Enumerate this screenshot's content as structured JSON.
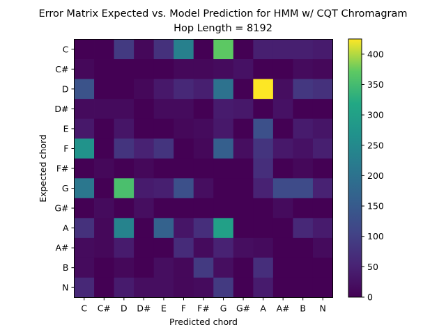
{
  "chart_data": {
    "type": "heatmap",
    "title_lines": [
      "Error Matrix Expected vs. Model Prediction for HMM w/ CQT Chromagram",
      "Hop Length = 8192"
    ],
    "xlabel": "Predicted chord",
    "ylabel": "Expected chord",
    "x_categories": [
      "C",
      "C#",
      "D",
      "D#",
      "E",
      "F",
      "F#",
      "G",
      "G#",
      "A",
      "A#",
      "B",
      "N"
    ],
    "y_categories": [
      "C",
      "C#",
      "D",
      "D#",
      "E",
      "F",
      "F#",
      "G",
      "G#",
      "A",
      "A#",
      "B",
      "N"
    ],
    "colormap": "viridis",
    "colorbar": {
      "min": 0,
      "max": 425,
      "ticks": [
        0,
        50,
        100,
        150,
        200,
        250,
        300,
        350,
        400
      ]
    },
    "values": [
      [
        0,
        0,
        90,
        10,
        75,
        230,
        0,
        370,
        0,
        45,
        45,
        45,
        40
      ],
      [
        10,
        0,
        0,
        0,
        0,
        10,
        10,
        15,
        25,
        0,
        0,
        15,
        10
      ],
      [
        135,
        0,
        0,
        10,
        35,
        60,
        45,
        200,
        0,
        425,
        20,
        85,
        75
      ],
      [
        15,
        15,
        15,
        0,
        15,
        15,
        0,
        40,
        35,
        0,
        25,
        0,
        0
      ],
      [
        35,
        0,
        30,
        0,
        0,
        10,
        15,
        35,
        0,
        130,
        0,
        40,
        30
      ],
      [
        270,
        0,
        80,
        50,
        80,
        0,
        10,
        160,
        20,
        80,
        35,
        25,
        45
      ],
      [
        0,
        10,
        0,
        10,
        0,
        0,
        0,
        0,
        0,
        70,
        0,
        10,
        0
      ],
      [
        210,
        0,
        355,
        40,
        45,
        130,
        20,
        0,
        0,
        50,
        120,
        120,
        50
      ],
      [
        0,
        15,
        0,
        20,
        0,
        0,
        0,
        0,
        0,
        0,
        15,
        0,
        0
      ],
      [
        75,
        10,
        235,
        0,
        165,
        30,
        70,
        300,
        0,
        0,
        0,
        60,
        40
      ],
      [
        15,
        10,
        40,
        0,
        0,
        65,
        15,
        50,
        20,
        15,
        0,
        0,
        15
      ],
      [
        15,
        0,
        10,
        0,
        20,
        10,
        90,
        20,
        0,
        70,
        0,
        0,
        0
      ],
      [
        60,
        0,
        40,
        20,
        20,
        10,
        15,
        90,
        0,
        40,
        0,
        0,
        0
      ]
    ]
  }
}
